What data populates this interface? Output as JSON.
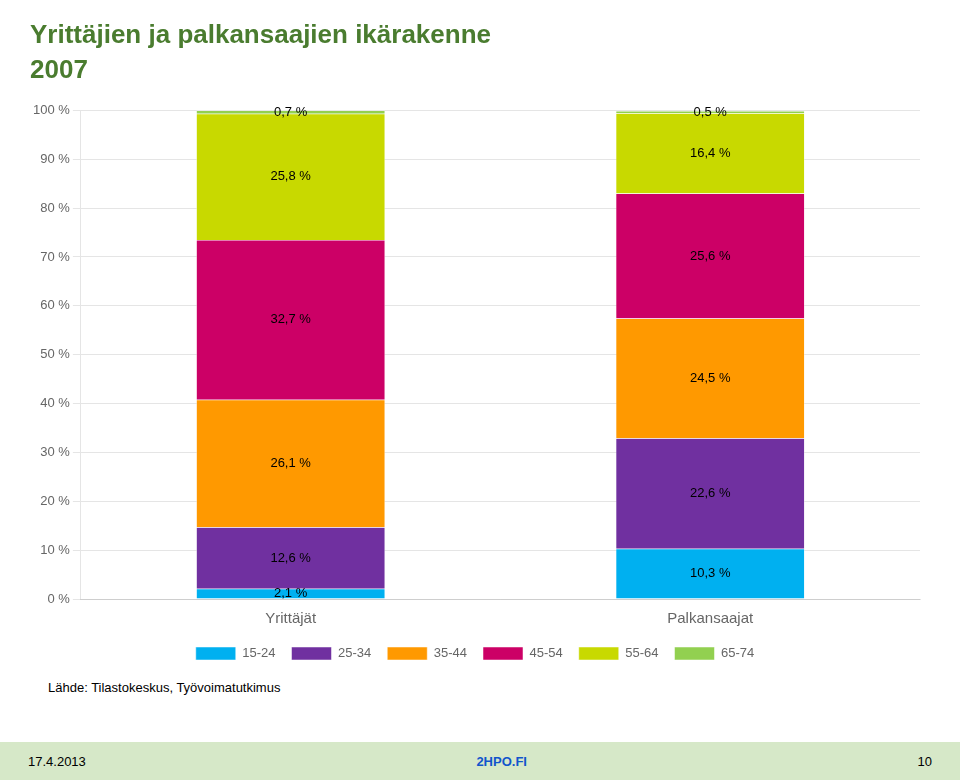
{
  "chart_data": {
    "type": "bar",
    "title": "Yrittäjien ja palkansaajien ikärakenne",
    "subtitle": "2007",
    "categories": [
      "Yrittäjät",
      "Palkansaajat"
    ],
    "series": [
      {
        "name": "15-24",
        "color": "#00b0f0",
        "values": [
          2.1,
          10.3
        ],
        "value_labels": [
          "2,1 %",
          "10,3 %"
        ]
      },
      {
        "name": "25-34",
        "color": "#7030a0",
        "values": [
          12.6,
          22.6
        ],
        "value_labels": [
          "12,6 %",
          "22,6 %"
        ]
      },
      {
        "name": "35-44",
        "color": "#ff9900",
        "values": [
          26.1,
          24.5
        ],
        "value_labels": [
          "26,1 %",
          "24,5 %"
        ]
      },
      {
        "name": "45-54",
        "color": "#cc0066",
        "values": [
          32.7,
          25.6
        ],
        "value_labels": [
          "32,7 %",
          "25,6 %"
        ]
      },
      {
        "name": "55-64",
        "color": "#c8d900",
        "values": [
          25.8,
          16.4
        ],
        "value_labels": [
          "25,8 %",
          "16,4 %"
        ]
      },
      {
        "name": "65-74",
        "color": "#92d050",
        "values": [
          0.7,
          0.5
        ],
        "value_labels": [
          "0,7 %",
          "0,5 %"
        ]
      }
    ],
    "stacked": true,
    "data_labels": true,
    "legend": "bottom",
    "grid": true,
    "ylim": [
      0,
      100
    ],
    "yticks": [
      {
        "value": 0,
        "label": "0 %"
      },
      {
        "value": 10,
        "label": "10 %"
      },
      {
        "value": 20,
        "label": "20 %"
      },
      {
        "value": 30,
        "label": "30 %"
      },
      {
        "value": 40,
        "label": "40 %"
      },
      {
        "value": 50,
        "label": "50 %"
      },
      {
        "value": 60,
        "label": "60 %"
      },
      {
        "value": 70,
        "label": "70 %"
      },
      {
        "value": 80,
        "label": "80 %"
      },
      {
        "value": 90,
        "label": "90 %"
      },
      {
        "value": 100,
        "label": "100 %"
      }
    ],
    "annotations": [
      "Lähde: Tilastokeskus, Työvoimatutkimus",
      "17.4.2013",
      "2HPO.FI",
      "10"
    ]
  }
}
